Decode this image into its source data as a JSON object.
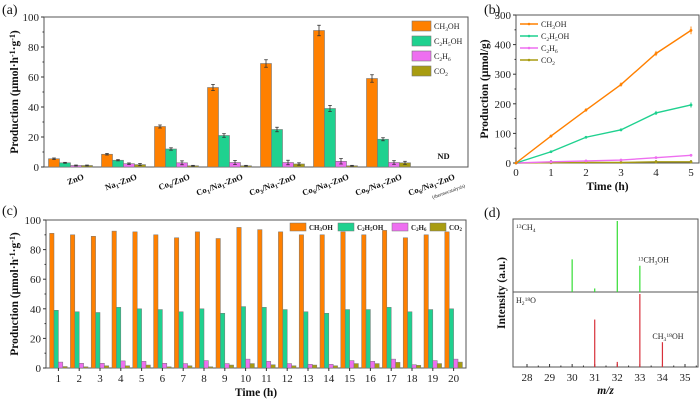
{
  "colors": {
    "CH3OH": "#ff8000",
    "C2H5OH": "#1fd18f",
    "C2H6": "#ee6ff0",
    "CO2": "#a89c10",
    "ms_green": "#33dd33",
    "ms_red": "#d8303a"
  },
  "chart_data": [
    {
      "id": "a",
      "panel_label": "(a)",
      "type": "bar",
      "ylabel": "Production (μmol·h⁻¹·g⁻¹)",
      "xlabel": "",
      "ylim": [
        0,
        100
      ],
      "yticks": [
        0,
        20,
        40,
        60,
        80,
        100
      ],
      "legend": [
        "CH3OH",
        "C2H5OH",
        "C2H6",
        "CO2"
      ],
      "legend_labels": [
        "CH₃OH",
        "C₂H₅OH",
        "C₂H₆",
        "CO₂"
      ],
      "legend_position": "top-right",
      "categories": [
        "ZnO",
        "Na₁-ZnO",
        "Co₆/ZnO",
        "Co₁/Na₁-ZnO",
        "Co₃/Na₁-ZnO",
        "Co₆/Na₁-ZnO",
        "Co₉/Na₁-ZnO",
        "Co₆/Na₁-ZnO"
      ],
      "category_notes": [
        "",
        "",
        "",
        "",
        "",
        "",
        "",
        "(thermocatalysis)"
      ],
      "annotation": "ND",
      "series": [
        {
          "name": "CH3OH",
          "values": [
            5.5,
            8.5,
            27,
            53,
            69,
            91,
            59,
            null
          ],
          "errors": [
            0.5,
            0.5,
            1,
            2,
            2.5,
            3.5,
            2.5,
            null
          ]
        },
        {
          "name": "C2H5OH",
          "values": [
            2.8,
            4.5,
            12,
            21,
            25,
            39,
            18.5,
            null
          ],
          "errors": [
            0.3,
            0.4,
            0.8,
            1.2,
            1.5,
            2,
            1,
            null
          ]
        },
        {
          "name": "C2H6",
          "values": [
            1,
            2.2,
            2.8,
            3,
            3,
            3.8,
            3,
            null
          ],
          "errors": [
            0.3,
            0.5,
            1.3,
            1.3,
            1.5,
            1.8,
            1.2,
            null
          ]
        },
        {
          "name": "CO2",
          "values": [
            1,
            1.6,
            0.8,
            0.8,
            2,
            0.8,
            2.8,
            null
          ],
          "errors": [
            0.3,
            0.7,
            0.3,
            0.3,
            0.8,
            0.3,
            1,
            null
          ]
        }
      ]
    },
    {
      "id": "b",
      "panel_label": "(b)",
      "type": "line",
      "ylabel": "Production (μmol/g)",
      "xlabel": "Time (h)",
      "xlim": [
        0,
        5
      ],
      "ylim": [
        0,
        500
      ],
      "xticks": [
        0,
        1,
        2,
        3,
        4,
        5
      ],
      "yticks": [
        0,
        100,
        200,
        300,
        400,
        500
      ],
      "legend_position": "top-left",
      "x": [
        0,
        1,
        2,
        3,
        4,
        5
      ],
      "series": [
        {
          "name": "CH3OH",
          "label": "CH₃OH",
          "values": [
            0,
            91,
            179,
            265,
            370,
            448
          ],
          "errors": [
            0,
            4,
            6,
            7,
            9,
            13
          ]
        },
        {
          "name": "C2H5OH",
          "label": "C₂H₅OH",
          "values": [
            0,
            38,
            87,
            112,
            169,
            196
          ],
          "errors": [
            0,
            2,
            3,
            5,
            7,
            9
          ]
        },
        {
          "name": "C2H6",
          "label": "C₂H₆",
          "values": [
            0,
            4,
            7,
            10,
            18,
            26
          ],
          "errors": [
            0,
            1,
            1,
            1,
            2,
            2
          ]
        },
        {
          "name": "CO2",
          "label": "CO₂",
          "values": [
            0,
            1,
            2,
            2,
            4,
            4
          ],
          "errors": [
            0,
            0.5,
            0.5,
            0.5,
            0.5,
            0.5
          ]
        }
      ]
    },
    {
      "id": "c",
      "panel_label": "(c)",
      "type": "bar",
      "ylabel": "Production (μmol·h⁻¹·g⁻¹)",
      "xlabel": "Time (h)",
      "ylim": [
        0,
        100
      ],
      "yticks": [
        0,
        20,
        40,
        60,
        80,
        100
      ],
      "legend_position": "top-right",
      "legend_labels": [
        "CH₃OH",
        "C₂H₅OH",
        "C₂H₆",
        "CO₂"
      ],
      "categories": [
        "1",
        "2",
        "3",
        "4",
        "5",
        "6",
        "7",
        "8",
        "9",
        "10",
        "11",
        "12",
        "13",
        "14",
        "15",
        "16",
        "17",
        "18",
        "19",
        "20"
      ],
      "series": [
        {
          "name": "CH3OH",
          "values": [
            91,
            90,
            89,
            92.5,
            92,
            90,
            88,
            92,
            87.5,
            95,
            93.5,
            92,
            90,
            90,
            92,
            90,
            93,
            88,
            90,
            92
          ]
        },
        {
          "name": "C2H5OH",
          "values": [
            39,
            38,
            37.5,
            41,
            40,
            39.5,
            38,
            40,
            37,
            41.5,
            41,
            39.5,
            38,
            37,
            39.5,
            39.5,
            41,
            38,
            39.5,
            40
          ]
        },
        {
          "name": "C2H6",
          "values": [
            4,
            3.2,
            3.2,
            4.8,
            4.5,
            3.2,
            3,
            5,
            3,
            6,
            4.5,
            3,
            2.5,
            2.5,
            5,
            4.5,
            6,
            2.2,
            5,
            6
          ]
        },
        {
          "name": "CO2",
          "values": [
            1,
            0.8,
            1.5,
            1.5,
            2,
            0.8,
            1.5,
            0.8,
            2,
            3,
            2.2,
            1.5,
            2,
            1.5,
            3,
            3,
            3.8,
            1.8,
            3,
            4
          ]
        }
      ]
    },
    {
      "id": "d",
      "panel_label": "(d)",
      "type": "bar",
      "subtype": "mass-spectrum",
      "ylabel": "Intensity (a.u.)",
      "xlabel": "m/z",
      "xlim": [
        27.5,
        35.5
      ],
      "xticks": [
        28,
        29,
        30,
        31,
        32,
        33,
        34,
        35
      ],
      "panels": [
        {
          "name": "13CH4",
          "label": "¹³CH₄",
          "annotation": "¹³CH₃OH",
          "annotation_at": 33,
          "color_key": "ms_green",
          "peaks": [
            {
              "mz": 30,
              "rel": 0.46
            },
            {
              "mz": 31,
              "rel": 0.05
            },
            {
              "mz": 32,
              "rel": 1.0
            },
            {
              "mz": 33,
              "rel": 0.37
            }
          ]
        },
        {
          "name": "H2 18O",
          "label": "H₂¹⁸O",
          "annotation": "CH₃¹⁸OH",
          "annotation_at": 34,
          "color_key": "ms_red",
          "peaks": [
            {
              "mz": 31,
              "rel": 0.65
            },
            {
              "mz": 32,
              "rel": 0.07
            },
            {
              "mz": 33,
              "rel": 1.0
            },
            {
              "mz": 34,
              "rel": 0.34
            }
          ]
        }
      ]
    }
  ]
}
